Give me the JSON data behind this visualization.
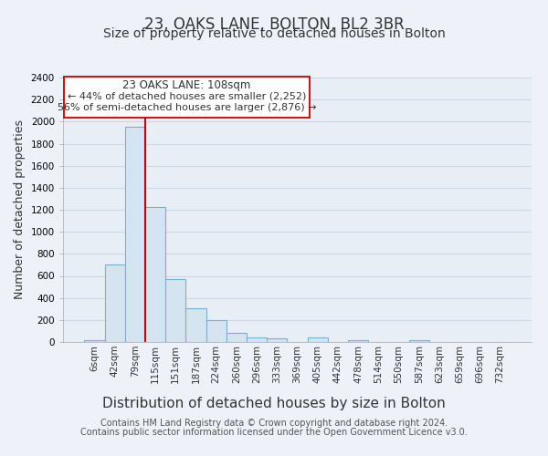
{
  "title": "23, OAKS LANE, BOLTON, BL2 3BR",
  "subtitle": "Size of property relative to detached houses in Bolton",
  "xlabel": "Distribution of detached houses by size in Bolton",
  "ylabel": "Number of detached properties",
  "bar_color": "#d4e4f0",
  "bar_edge_color": "#7aafd4",
  "tick_labels": [
    "6sqm",
    "42sqm",
    "79sqm",
    "115sqm",
    "151sqm",
    "187sqm",
    "224sqm",
    "260sqm",
    "296sqm",
    "333sqm",
    "369sqm",
    "405sqm",
    "442sqm",
    "478sqm",
    "514sqm",
    "550sqm",
    "587sqm",
    "623sqm",
    "659sqm",
    "696sqm",
    "732sqm"
  ],
  "bar_values": [
    20,
    700,
    1950,
    1225,
    575,
    305,
    200,
    80,
    45,
    35,
    0,
    38,
    0,
    18,
    0,
    0,
    20,
    0,
    0,
    0,
    0
  ],
  "ylim": [
    0,
    2400
  ],
  "yticks": [
    0,
    200,
    400,
    600,
    800,
    1000,
    1200,
    1400,
    1600,
    1800,
    2000,
    2200,
    2400
  ],
  "vline_color": "#cc0000",
  "annotation_title": "23 OAKS LANE: 108sqm",
  "annotation_line1": "← 44% of detached houses are smaller (2,252)",
  "annotation_line2": "56% of semi-detached houses are larger (2,876) →",
  "annotation_box_color": "#ffffff",
  "annotation_box_edge": "#cc0000",
  "footer_line1": "Contains HM Land Registry data © Crown copyright and database right 2024.",
  "footer_line2": "Contains public sector information licensed under the Open Government Licence v3.0.",
  "background_color": "#eef2f8",
  "plot_bg_color": "#e8eef6",
  "grid_color": "#c8d8e8",
  "title_fontsize": 12,
  "subtitle_fontsize": 10,
  "xlabel_fontsize": 11,
  "ylabel_fontsize": 9,
  "tick_fontsize": 7.5,
  "footer_fontsize": 7
}
